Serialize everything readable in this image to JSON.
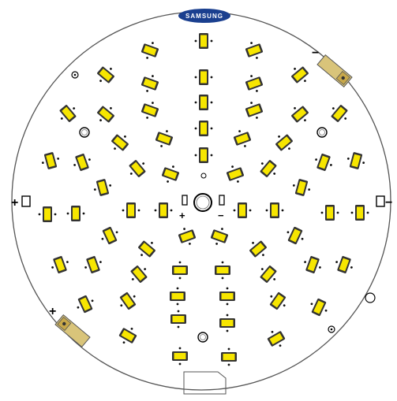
{
  "board": {
    "brand_logo_text": "SAMSUNG",
    "polarity_plus": "+",
    "polarity_minus": "−",
    "colors": {
      "board_fill": "#ffffff",
      "board_outline": "#555555",
      "led_body": "#f7e600",
      "led_frame": "#333333",
      "logo_fill": "#1a3f8f",
      "connector_fill": "#c8a84a"
    }
  }
}
